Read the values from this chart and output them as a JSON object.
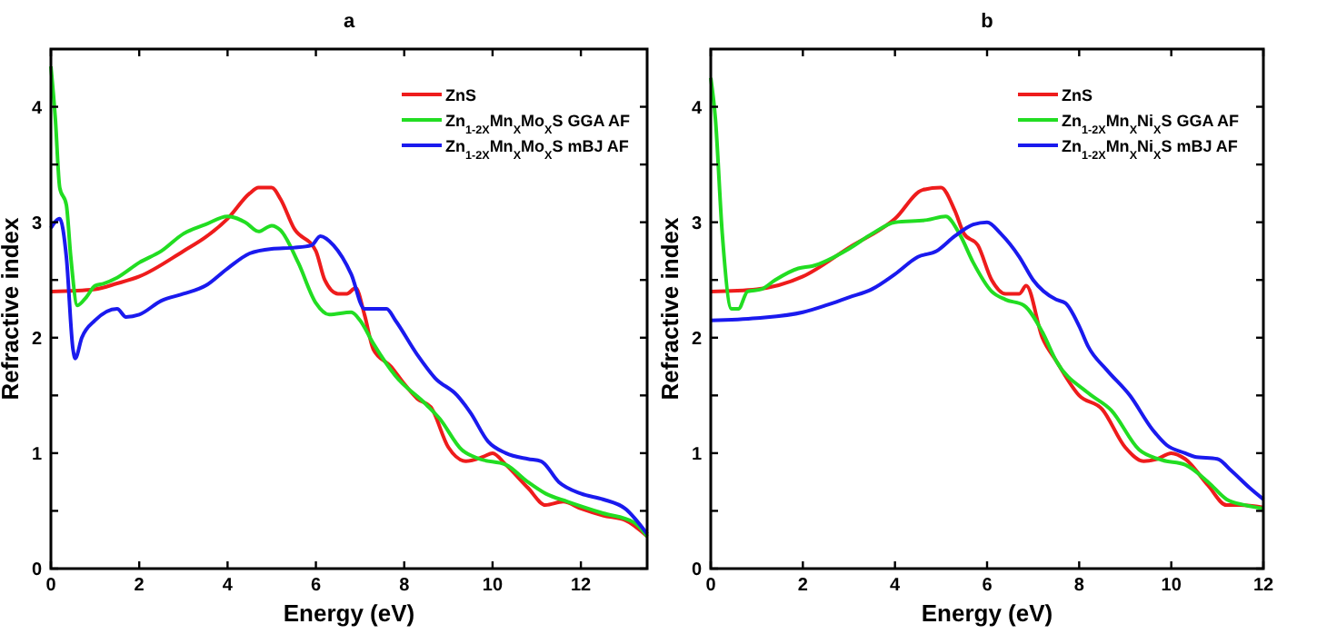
{
  "chart_data": [
    {
      "type": "line",
      "title": "a",
      "xlabel": "Energy (eV)",
      "ylabel": "Refractive index",
      "xlim": [
        0,
        13.5
      ],
      "xticks": [
        0,
        2,
        4,
        6,
        8,
        10,
        12
      ],
      "ylim": [
        0,
        4.5
      ],
      "yticks": [
        0,
        {
          "value": 0.5,
          "label": null
        },
        1,
        {
          "value": 1.5,
          "label": null
        },
        2,
        {
          "value": 2.5,
          "label": null
        },
        3,
        {
          "value": 3.5,
          "label": null
        },
        4
      ],
      "legend": "top right",
      "grid": false,
      "line_style": "solid",
      "series": [
        {
          "name": "ZnS",
          "color": "#ee1c1c",
          "x": [
            0,
            1,
            1.5,
            2,
            3,
            3.5,
            4,
            4.5,
            4.7,
            5,
            5.2,
            5.5,
            6,
            6.2,
            6.5,
            6.7,
            6.9,
            7.1,
            7.3,
            7.7,
            8,
            8.3,
            8.6,
            9,
            9.4,
            9.8,
            10,
            10.3,
            10.8,
            11.2,
            11.6,
            12,
            12.5,
            13,
            13.5
          ],
          "values": [
            2.4,
            2.42,
            2.47,
            2.53,
            2.75,
            2.87,
            3.03,
            3.25,
            3.3,
            3.3,
            3.2,
            2.95,
            2.75,
            2.5,
            2.38,
            2.38,
            2.43,
            2.2,
            1.9,
            1.75,
            1.6,
            1.47,
            1.4,
            1.05,
            0.93,
            0.97,
            1.0,
            0.9,
            0.7,
            0.55,
            0.58,
            0.52,
            0.46,
            0.42,
            0.28
          ]
        },
        {
          "name": "Zn$_{1-2X}$Mn$_{X}$Mo$_{X}$S GGA AF",
          "color": "#22dd22",
          "x": [
            0,
            0.1,
            0.2,
            0.35,
            0.45,
            0.6,
            0.8,
            1.0,
            1.2,
            1.5,
            2,
            2.5,
            3,
            3.5,
            4,
            4.4,
            4.7,
            5.0,
            5.2,
            5.6,
            6,
            6.3,
            6.8,
            7.0,
            7.3,
            7.8,
            8.5,
            8.8,
            9.3,
            9.7,
            10.3,
            10.8,
            11.2,
            11.7,
            12.5,
            13.2,
            13.5
          ],
          "values": [
            4.35,
            3.9,
            3.3,
            3.15,
            2.7,
            2.28,
            2.35,
            2.45,
            2.47,
            2.52,
            2.65,
            2.75,
            2.9,
            2.98,
            3.05,
            3.0,
            2.92,
            2.97,
            2.93,
            2.65,
            2.3,
            2.2,
            2.22,
            2.15,
            1.95,
            1.67,
            1.42,
            1.3,
            1.03,
            0.95,
            0.9,
            0.75,
            0.65,
            0.58,
            0.48,
            0.4,
            0.28
          ]
        },
        {
          "name": "Zn$_{1-2X}$Mn$_{X}$Mo$_{X}$S mBJ AF",
          "color": "#1a1aee",
          "x": [
            0,
            0.2,
            0.35,
            0.5,
            0.55,
            0.7,
            1.0,
            1.5,
            1.7,
            2,
            2.5,
            3,
            3.5,
            4,
            4.5,
            5,
            5.5,
            5.9,
            6.1,
            6.4,
            6.8,
            7.1,
            7.6,
            7.8,
            8.3,
            8.7,
            9.2,
            9.5,
            9.9,
            10.3,
            10.8,
            11.1,
            11.5,
            12,
            12.5,
            13,
            13.5
          ],
          "values": [
            2.95,
            3.03,
            2.7,
            1.9,
            1.82,
            2.0,
            2.15,
            2.25,
            2.18,
            2.2,
            2.32,
            2.38,
            2.45,
            2.6,
            2.73,
            2.77,
            2.78,
            2.8,
            2.88,
            2.8,
            2.55,
            2.25,
            2.25,
            2.15,
            1.85,
            1.65,
            1.5,
            1.35,
            1.1,
            1.0,
            0.95,
            0.93,
            0.75,
            0.65,
            0.6,
            0.52,
            0.3
          ]
        }
      ]
    },
    {
      "type": "line",
      "title": "b",
      "xlabel": "Energy (eV)",
      "ylabel": "Refractive index",
      "xlim": [
        0,
        12
      ],
      "xticks": [
        0,
        2,
        4,
        6,
        8,
        10,
        12
      ],
      "ylim": [
        0,
        4.5
      ],
      "yticks": [
        0,
        {
          "value": 0.5,
          "label": null
        },
        1,
        {
          "value": 1.5,
          "label": null
        },
        2,
        {
          "value": 2.5,
          "label": null
        },
        3,
        {
          "value": 3.5,
          "label": null
        },
        4
      ],
      "legend": "top right",
      "grid": false,
      "line_style": "solid",
      "series": [
        {
          "name": "ZnS",
          "color": "#ee1c1c",
          "x": [
            0,
            1,
            2,
            3,
            4,
            4.6,
            5,
            5.3,
            5.5,
            5.8,
            6.1,
            6.4,
            6.7,
            6.85,
            7.2,
            7.5,
            8,
            8.5,
            9,
            9.4,
            9.7,
            10.0,
            10.3,
            10.8,
            11.2,
            11.5,
            12
          ],
          "values": [
            2.4,
            2.42,
            2.53,
            2.78,
            3.03,
            3.28,
            3.3,
            3.1,
            2.9,
            2.8,
            2.5,
            2.38,
            2.38,
            2.45,
            2.0,
            1.8,
            1.5,
            1.38,
            1.05,
            0.93,
            0.95,
            1.0,
            0.95,
            0.72,
            0.55,
            0.55,
            0.53
          ]
        },
        {
          "name": "Zn$_{1-2X}$Mn$_{X}$Ni$_{X}$S GGA AF",
          "color": "#22dd22",
          "x": [
            0,
            0.1,
            0.25,
            0.45,
            0.6,
            0.8,
            1.1,
            1.4,
            1.9,
            2.2,
            3,
            3.5,
            4,
            4.7,
            5.1,
            5.4,
            5.7,
            6.1,
            6.4,
            6.8,
            7.2,
            7.5,
            8.2,
            8.7,
            9.3,
            9.8,
            10.3,
            10.8,
            11.2,
            11.6,
            12
          ],
          "values": [
            4.25,
            3.9,
            2.9,
            2.25,
            2.25,
            2.4,
            2.42,
            2.5,
            2.6,
            2.62,
            2.77,
            2.9,
            3.0,
            3.02,
            3.05,
            2.9,
            2.65,
            2.4,
            2.33,
            2.28,
            2.05,
            1.8,
            1.52,
            1.37,
            1.03,
            0.94,
            0.9,
            0.75,
            0.6,
            0.55,
            0.52
          ]
        },
        {
          "name": "Zn$_{1-2X}$Mn$_{X}$Ni$_{X}$S mBJ AF",
          "color": "#1a1aee",
          "x": [
            0,
            1,
            2,
            2.5,
            3,
            3.5,
            4,
            4.5,
            4.9,
            5.3,
            5.7,
            6,
            6.3,
            6.7,
            7.0,
            7.5,
            7.7,
            8.0,
            8.2,
            8.6,
            9.1,
            9.6,
            9.9,
            10.3,
            10.5,
            11,
            11.3,
            11.7,
            12
          ],
          "values": [
            2.15,
            2.17,
            2.22,
            2.28,
            2.35,
            2.42,
            2.55,
            2.7,
            2.75,
            2.88,
            2.98,
            3.0,
            2.9,
            2.7,
            2.5,
            2.33,
            2.3,
            2.1,
            1.92,
            1.72,
            1.5,
            1.2,
            1.07,
            1.0,
            0.97,
            0.95,
            0.85,
            0.7,
            0.6
          ]
        }
      ]
    }
  ]
}
